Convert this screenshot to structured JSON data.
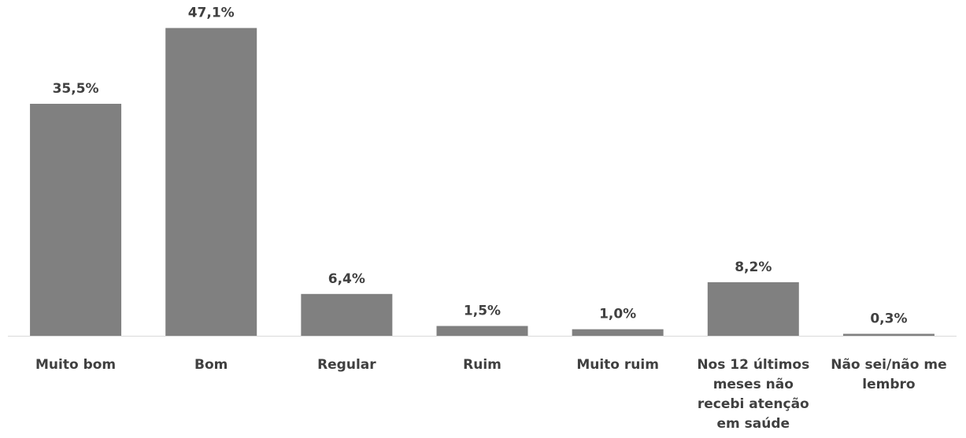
{
  "chart_data": {
    "type": "bar",
    "categories": [
      [
        "Muito bom"
      ],
      [
        "Bom"
      ],
      [
        "Regular"
      ],
      [
        "Ruim"
      ],
      [
        "Muito ruim"
      ],
      [
        "Nos 12 últimos",
        "meses não",
        "recebi atenção",
        "em saúde"
      ],
      [
        "Não sei/não me",
        "lembro"
      ]
    ],
    "values": [
      35.5,
      47.1,
      6.4,
      1.5,
      1.0,
      8.2,
      0.3
    ],
    "data_labels": [
      "35,5%",
      "47,1%",
      "6,4%",
      "1,5%",
      "1,0%",
      "8,2%",
      "0,3%"
    ],
    "title": "",
    "xlabel": "",
    "ylabel": "",
    "grid": false,
    "legend": "none",
    "bar_color": "#808080",
    "axis_color": "#d9d9d9",
    "label_color": "#404040"
  }
}
